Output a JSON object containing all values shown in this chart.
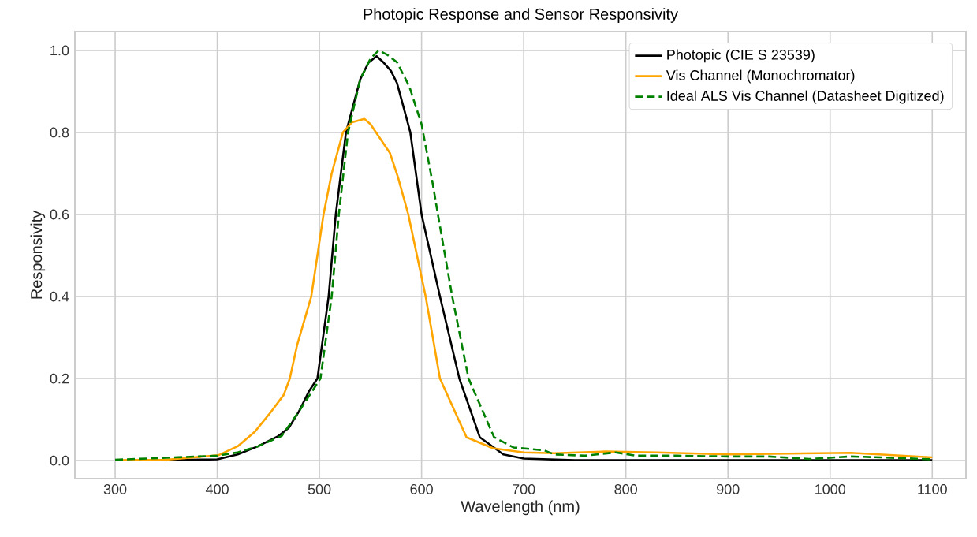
{
  "chart_data": {
    "type": "line",
    "title": "Photopic Response and Sensor Responsivity",
    "xlabel": "Wavelength (nm)",
    "ylabel": "Responsivity",
    "xlim": [
      260.6,
      1133
    ],
    "ylim": [
      -0.044,
      1.046
    ],
    "xticks": [
      300,
      400,
      500,
      600,
      700,
      800,
      900,
      1000,
      1100
    ],
    "yticks": [
      {
        "value": 0,
        "label": "0.0"
      },
      {
        "value": 0.2,
        "label": "0.2"
      },
      {
        "value": 0.4,
        "label": "0.4"
      },
      {
        "value": 0.6,
        "label": "0.6"
      },
      {
        "value": 0.8,
        "label": "0.8"
      },
      {
        "value": 1,
        "label": "1.0"
      }
    ],
    "grid": true,
    "legend": "top right",
    "series": [
      {
        "name": "Photopic (CIE S 23539)",
        "color": "#000000",
        "line_style": "solid",
        "x": [
          350,
          400,
          420,
          440,
          460,
          470,
          480,
          490,
          498,
          509,
          516,
          526,
          540,
          548,
          556,
          563,
          570,
          576,
          589,
          600,
          618,
          637,
          657,
          680,
          700,
          750,
          900,
          1100
        ],
        "values": [
          0.001,
          0.003,
          0.015,
          0.035,
          0.06,
          0.08,
          0.12,
          0.17,
          0.2,
          0.4,
          0.6,
          0.8,
          0.93,
          0.97,
          0.986,
          0.97,
          0.95,
          0.92,
          0.8,
          0.6,
          0.4,
          0.2,
          0.057,
          0.015,
          0.005,
          0.001,
          0.001,
          0.001
        ]
      },
      {
        "name": "Vis Channel (Monochromator)",
        "color": "#ffa500",
        "line_style": "solid",
        "x": [
          300,
          350,
          401,
          420,
          437,
          452,
          465,
          471,
          478,
          492,
          504,
          512,
          523,
          532,
          544,
          550,
          569,
          577,
          587,
          604,
          618,
          644,
          670,
          700,
          730,
          780,
          830,
          900,
          1020,
          1100
        ],
        "values": [
          0.001,
          0.002,
          0.013,
          0.035,
          0.071,
          0.117,
          0.16,
          0.2,
          0.28,
          0.4,
          0.6,
          0.7,
          0.8,
          0.825,
          0.833,
          0.82,
          0.75,
          0.69,
          0.6,
          0.4,
          0.2,
          0.057,
          0.03,
          0.02,
          0.018,
          0.022,
          0.02,
          0.015,
          0.019,
          0.008
        ]
      },
      {
        "name": "Ideal ALS Vis Channel (Datasheet Digitized)",
        "color": "#008000",
        "line_style": "dashed",
        "x": [
          300,
          380,
          400,
          420,
          440,
          463,
          480,
          501,
          512,
          519,
          528,
          540,
          550,
          558,
          566,
          576,
          588,
          600,
          611,
          616,
          630,
          646,
          671,
          690,
          720,
          730,
          760,
          790,
          810,
          850,
          900,
          940,
          980,
          1020,
          1050,
          1100
        ],
        "values": [
          0.002,
          0.01,
          0.012,
          0.02,
          0.035,
          0.06,
          0.12,
          0.2,
          0.4,
          0.6,
          0.8,
          0.93,
          0.98,
          1.0,
          0.99,
          0.971,
          0.912,
          0.82,
          0.674,
          0.6,
          0.4,
          0.2,
          0.057,
          0.032,
          0.025,
          0.015,
          0.012,
          0.02,
          0.012,
          0.012,
          0.01,
          0.01,
          0.004,
          0.01,
          0.008,
          0.003
        ]
      }
    ]
  }
}
